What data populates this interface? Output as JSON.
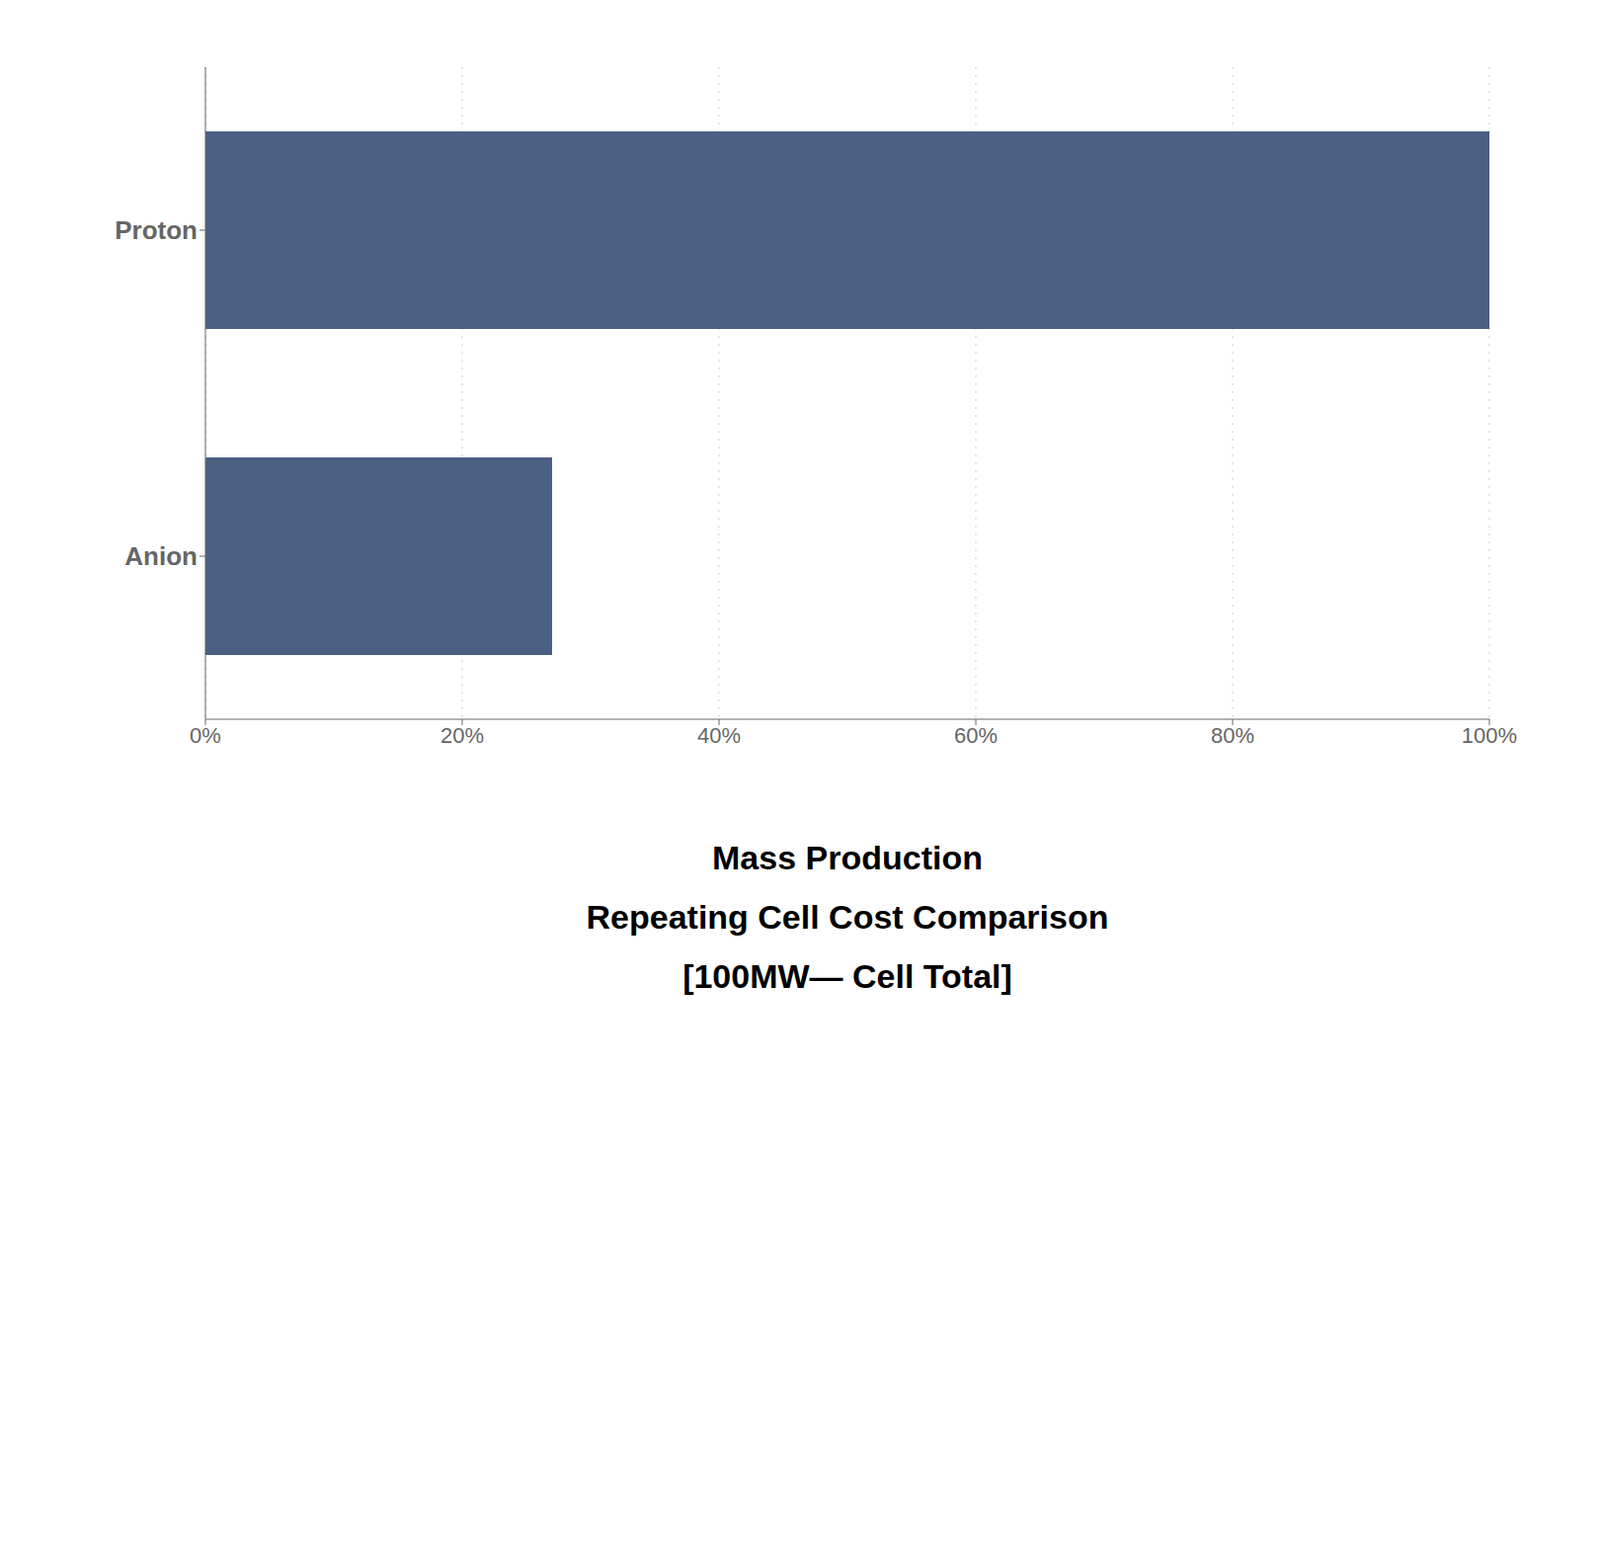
{
  "chart_data": {
    "type": "bar",
    "orientation": "horizontal",
    "title": [
      "Mass Production",
      "Repeating Cell Cost Comparison",
      "[100MW— Cell Total]"
    ],
    "categories": [
      "Proton",
      "Anion"
    ],
    "values": [
      100,
      27
    ],
    "color": "#4a5f82",
    "xlim": [
      0,
      100
    ],
    "xticks": [
      {
        "value": 0,
        "label": "0%"
      },
      {
        "value": 20,
        "label": "20%"
      },
      {
        "value": 40,
        "label": "40%"
      },
      {
        "value": 60,
        "label": "60%"
      },
      {
        "value": 80,
        "label": "80%"
      },
      {
        "value": 100,
        "label": "100%"
      }
    ],
    "grid": true
  }
}
